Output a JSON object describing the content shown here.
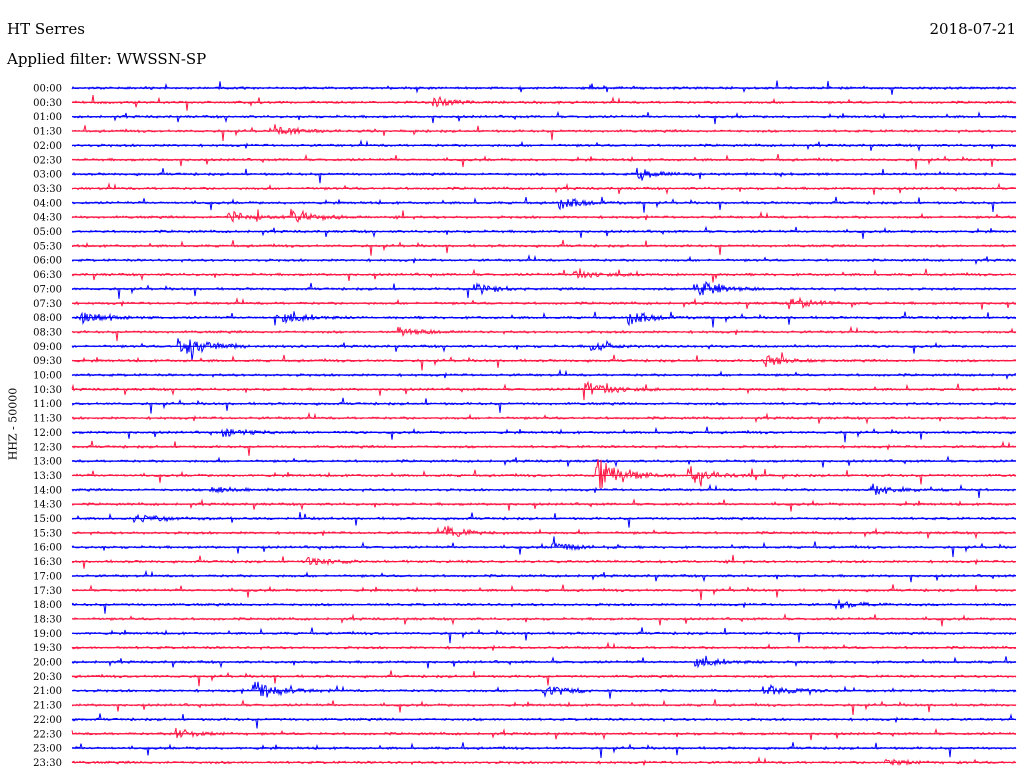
{
  "header": {
    "station": "HT Serres",
    "date": "2018-07-21",
    "filter_label": "Applied filter: WWSSN-SP"
  },
  "chart_data": {
    "type": "line",
    "title": "HT Serres",
    "subtitle": "Applied filter: WWSSN-SP",
    "ylabel": "HHZ - 50000",
    "xlabel": "",
    "grid": false,
    "legend": "none",
    "row_labels": [
      "00:00",
      "00:30",
      "01:00",
      "01:30",
      "02:00",
      "02:30",
      "03:00",
      "03:30",
      "04:00",
      "04:30",
      "05:00",
      "05:30",
      "06:00",
      "06:30",
      "07:00",
      "07:30",
      "08:00",
      "08:30",
      "09:00",
      "09:30",
      "10:00",
      "10:30",
      "11:00",
      "11:30",
      "12:00",
      "12:30",
      "13:00",
      "13:30",
      "14:00",
      "14:30",
      "15:00",
      "15:30",
      "16:00",
      "16:30",
      "17:00",
      "17:30",
      "18:00",
      "18:30",
      "19:00",
      "19:30",
      "20:00",
      "20:30",
      "21:00",
      "21:30",
      "22:00",
      "22:30",
      "23:00",
      "23:30"
    ],
    "trace_colors": [
      "#0000ff",
      "#ff1744"
    ],
    "events": [
      {
        "row": "00:30",
        "minute": 11.5,
        "amplitude": 0.35
      },
      {
        "row": "01:30",
        "minute": 6.5,
        "amplitude": 0.4
      },
      {
        "row": "03:00",
        "minute": 18.0,
        "amplitude": 0.45
      },
      {
        "row": "04:00",
        "minute": 15.5,
        "amplitude": 0.6
      },
      {
        "row": "04:30",
        "minute": 5.0,
        "amplitude": 0.5
      },
      {
        "row": "04:30",
        "minute": 7.0,
        "amplitude": 0.6
      },
      {
        "row": "06:30",
        "minute": 16.0,
        "amplitude": 0.4
      },
      {
        "row": "07:00",
        "minute": 12.8,
        "amplitude": 0.55
      },
      {
        "row": "07:00",
        "minute": 19.8,
        "amplitude": 1.1
      },
      {
        "row": "07:30",
        "minute": 22.8,
        "amplitude": 0.6
      },
      {
        "row": "08:00",
        "minute": 0.3,
        "amplitude": 0.5
      },
      {
        "row": "08:00",
        "minute": 6.5,
        "amplitude": 0.55
      },
      {
        "row": "08:00",
        "minute": 17.7,
        "amplitude": 0.7
      },
      {
        "row": "08:30",
        "minute": 10.4,
        "amplitude": 0.45
      },
      {
        "row": "09:00",
        "minute": 3.4,
        "amplitude": 1.3
      },
      {
        "row": "09:00",
        "minute": 16.5,
        "amplitude": 0.4
      },
      {
        "row": "09:30",
        "minute": 22.0,
        "amplitude": 0.5
      },
      {
        "row": "10:30",
        "minute": 16.3,
        "amplitude": 1.0
      },
      {
        "row": "12:00",
        "minute": 4.8,
        "amplitude": 0.4
      },
      {
        "row": "13:30",
        "minute": 16.7,
        "amplitude": 1.5
      },
      {
        "row": "13:30",
        "minute": 19.6,
        "amplitude": 0.8
      },
      {
        "row": "14:00",
        "minute": 4.4,
        "amplitude": 0.35
      },
      {
        "row": "14:00",
        "minute": 25.5,
        "amplitude": 0.4
      },
      {
        "row": "15:00",
        "minute": 2.0,
        "amplitude": 0.5
      },
      {
        "row": "15:30",
        "minute": 11.8,
        "amplitude": 0.6
      },
      {
        "row": "16:00",
        "minute": 15.3,
        "amplitude": 0.4
      },
      {
        "row": "16:30",
        "minute": 7.5,
        "amplitude": 0.4
      },
      {
        "row": "18:00",
        "minute": 24.3,
        "amplitude": 0.35
      },
      {
        "row": "20:00",
        "minute": 19.7,
        "amplitude": 0.45
      },
      {
        "row": "21:00",
        "minute": 5.8,
        "amplitude": 0.9
      },
      {
        "row": "21:00",
        "minute": 15.0,
        "amplitude": 0.55
      },
      {
        "row": "21:00",
        "minute": 22.0,
        "amplitude": 0.55
      },
      {
        "row": "22:30",
        "minute": 3.3,
        "amplitude": 0.4
      },
      {
        "row": "23:30",
        "minute": 25.8,
        "amplitude": 0.35
      }
    ]
  }
}
